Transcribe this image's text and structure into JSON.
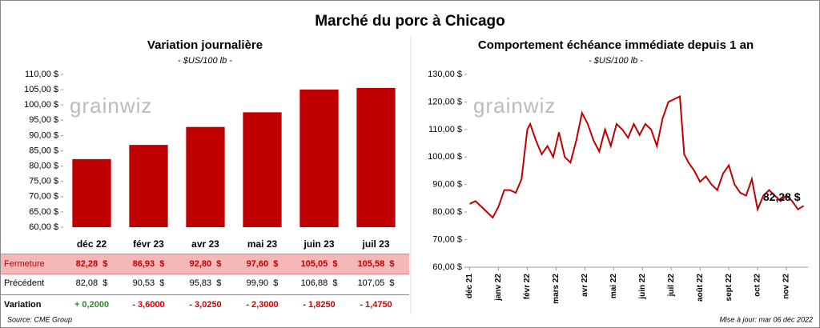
{
  "title": "Marché du porc à Chicago",
  "watermark": "grainwiz",
  "chart_data": [
    {
      "type": "bar",
      "title": "Variation journalière",
      "subtitle": "- $US/100 lb -",
      "categories": [
        "déc 22",
        "févr 23",
        "avr 23",
        "mai 23",
        "juin 23",
        "juil 23"
      ],
      "values": [
        82.28,
        86.93,
        92.8,
        97.6,
        105.05,
        105.58
      ],
      "color": "#c00000",
      "ylim": [
        60,
        110
      ],
      "yticks": [
        {
          "value": 60,
          "label": "60,00 $"
        },
        {
          "value": 65,
          "label": "65,00 $"
        },
        {
          "value": 70,
          "label": "70,00 $"
        },
        {
          "value": 75,
          "label": "75,00 $"
        },
        {
          "value": 80,
          "label": "80,00 $"
        },
        {
          "value": 85,
          "label": "85,00 $"
        },
        {
          "value": 90,
          "label": "90,00 $"
        },
        {
          "value": 95,
          "label": "95,00 $"
        },
        {
          "value": 100,
          "label": "100,00 $"
        },
        {
          "value": 105,
          "label": "105,00 $"
        },
        {
          "value": 110,
          "label": "110,00 $"
        }
      ],
      "grid": false
    },
    {
      "type": "line",
      "title": "Comportement  échéance immédiate depuis 1 an",
      "subtitle": "- $US/100 lb -",
      "color": "#c00000",
      "x": [
        0,
        0.2,
        0.4,
        0.6,
        0.8,
        1.0,
        1.2,
        1.4,
        1.6,
        1.8,
        2.0,
        2.1,
        2.3,
        2.5,
        2.7,
        2.9,
        3.1,
        3.3,
        3.5,
        3.7,
        3.9,
        4.1,
        4.3,
        4.5,
        4.7,
        4.9,
        5.1,
        5.3,
        5.5,
        5.7,
        5.9,
        6.1,
        6.3,
        6.5,
        6.7,
        6.9,
        7.1,
        7.3,
        7.45,
        7.6,
        7.8,
        8.0,
        8.2,
        8.4,
        8.6,
        8.8,
        9.0,
        9.2,
        9.4,
        9.6,
        9.8,
        10.0,
        10.2,
        10.4,
        10.6,
        10.8,
        11.0,
        11.2,
        11.4,
        11.6
      ],
      "values": [
        83,
        84,
        82,
        80,
        78,
        82,
        88,
        88,
        87,
        92,
        110,
        112,
        106,
        101,
        104,
        100,
        109,
        100,
        98,
        106,
        116,
        112,
        106,
        102,
        110,
        104,
        112,
        110,
        107,
        112,
        108,
        112,
        110,
        104,
        114,
        120,
        121,
        122,
        101,
        98,
        95,
        91,
        93,
        90,
        88,
        94,
        97,
        90,
        87,
        86,
        92,
        81,
        86,
        88,
        86,
        84,
        86,
        84,
        81,
        82.28
      ],
      "annotation": "82,28 $",
      "xlim": [
        -0.1,
        11.75
      ],
      "xticks": [
        {
          "value": 0,
          "label": "déc 21"
        },
        {
          "value": 1,
          "label": "janv 22"
        },
        {
          "value": 2,
          "label": "févr 22"
        },
        {
          "value": 3,
          "label": "mars 22"
        },
        {
          "value": 4,
          "label": "avr 22"
        },
        {
          "value": 5,
          "label": "mai 22"
        },
        {
          "value": 6,
          "label": "juin 22"
        },
        {
          "value": 7,
          "label": "juil 22"
        },
        {
          "value": 8,
          "label": "août 22"
        },
        {
          "value": 9,
          "label": "sept 22"
        },
        {
          "value": 10,
          "label": "oct 22"
        },
        {
          "value": 11,
          "label": "nov 22"
        }
      ],
      "ylim": [
        60,
        130
      ],
      "yticks": [
        {
          "value": 60,
          "label": "60,00 $"
        },
        {
          "value": 70,
          "label": "70,00 $"
        },
        {
          "value": 80,
          "label": "80,00 $"
        },
        {
          "value": 90,
          "label": "90,00 $"
        },
        {
          "value": 100,
          "label": "100,00 $"
        },
        {
          "value": 110,
          "label": "110,00 $"
        },
        {
          "value": 120,
          "label": "120,00 $"
        },
        {
          "value": 130,
          "label": "130,00 $"
        }
      ]
    }
  ],
  "table": {
    "rows": [
      {
        "label": "Fermeture",
        "cells": [
          "82,28  $",
          "86,93  $",
          "92,80  $",
          "97,60  $",
          "105,05  $",
          "105,58  $"
        ]
      },
      {
        "label": "Précédent",
        "cells": [
          "82,08  $",
          "90,53  $",
          "95,83  $",
          "99,90  $",
          "106,88  $",
          "107,05  $"
        ]
      },
      {
        "label": "Variation",
        "cells": [
          "+ 0,2000",
          "- 3,6000",
          "- 3,0250",
          "- 2,3000",
          "- 1,8250",
          "- 1,4750"
        ]
      }
    ]
  },
  "footer": {
    "source": "Source: CME Group",
    "updated": "Mise à jour: mar 06 déc 2022"
  }
}
